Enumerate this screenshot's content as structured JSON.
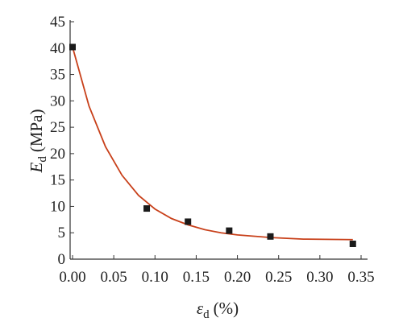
{
  "chart_data": {
    "type": "scatter",
    "ylabel": [
      "E",
      "d",
      "(MPa)"
    ],
    "xlabel": [
      "ε",
      "d",
      "(%)"
    ],
    "xlim": [
      0,
      0.35
    ],
    "xticks": [
      {
        "value": 0,
        "label": "0.00"
      },
      {
        "value": 0.05,
        "label": "0.05"
      },
      {
        "value": 0.1,
        "label": "0.10"
      },
      {
        "value": 0.15,
        "label": "0.15"
      },
      {
        "value": 0.2,
        "label": "0.20"
      },
      {
        "value": 0.25,
        "label": "0.25"
      },
      {
        "value": 0.3,
        "label": "0.30"
      },
      {
        "value": 0.35,
        "label": "0.35"
      }
    ],
    "ylim": [
      0,
      45
    ],
    "yticks": [
      0,
      5,
      10,
      15,
      20,
      25,
      30,
      35,
      40,
      45
    ],
    "points": {
      "color": "#1a1a1a",
      "x": [
        0,
        0.09,
        0.14,
        0.19,
        0.24,
        0.34
      ],
      "values": [
        40.2,
        9.6,
        7.1,
        5.4,
        4.3,
        2.9
      ]
    },
    "fit": {
      "color": "#c8401a",
      "x": [
        0,
        0.02,
        0.04,
        0.06,
        0.08,
        0.1,
        0.12,
        0.14,
        0.16,
        0.18,
        0.2,
        0.24,
        0.28,
        0.34
      ],
      "values": [
        40.2,
        29.0,
        21.3,
        15.9,
        12.1,
        9.5,
        7.7,
        6.5,
        5.6,
        5.0,
        4.6,
        4.1,
        3.8,
        3.7
      ]
    }
  }
}
